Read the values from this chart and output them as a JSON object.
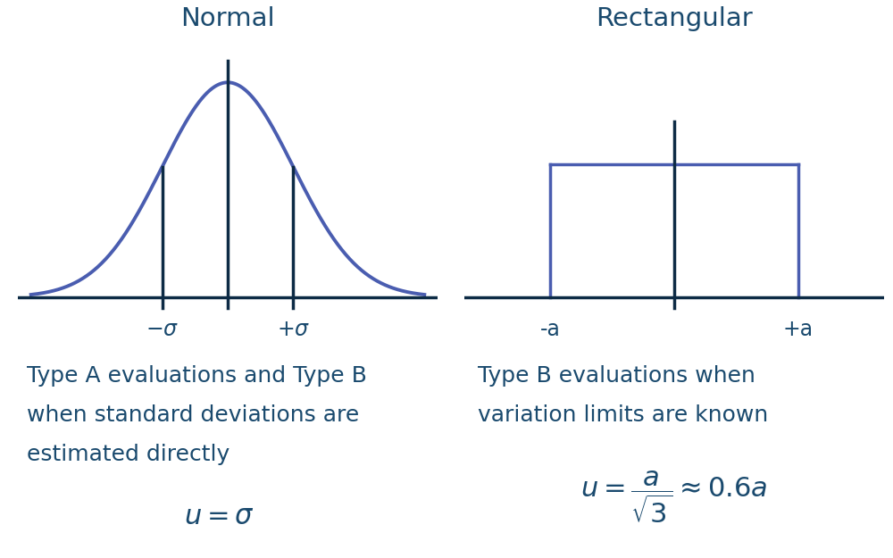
{
  "bg_color": "#ffffff",
  "curve_color": "#4a5db0",
  "line_color": "#0d2b45",
  "rect_color": "#4a5db0",
  "title_color": "#1a4a6e",
  "text_color": "#1a4a6e",
  "normal_title": "Normal",
  "rect_title": "Rectangular",
  "normal_desc1": "Type A evaluations and Type B",
  "normal_desc2": "when standard deviations are",
  "normal_desc3": "estimated directly",
  "normal_formula": "$u = \\sigma$",
  "rect_desc1": "Type B evaluations when",
  "rect_desc2": "variation limits are known",
  "rect_formula": "$u = \\dfrac{a}{\\sqrt{3}} \\approx 0.6a$",
  "title_fontsize": 21,
  "desc_fontsize": 18,
  "formula_fontsize": 22,
  "label_fontsize": 17
}
